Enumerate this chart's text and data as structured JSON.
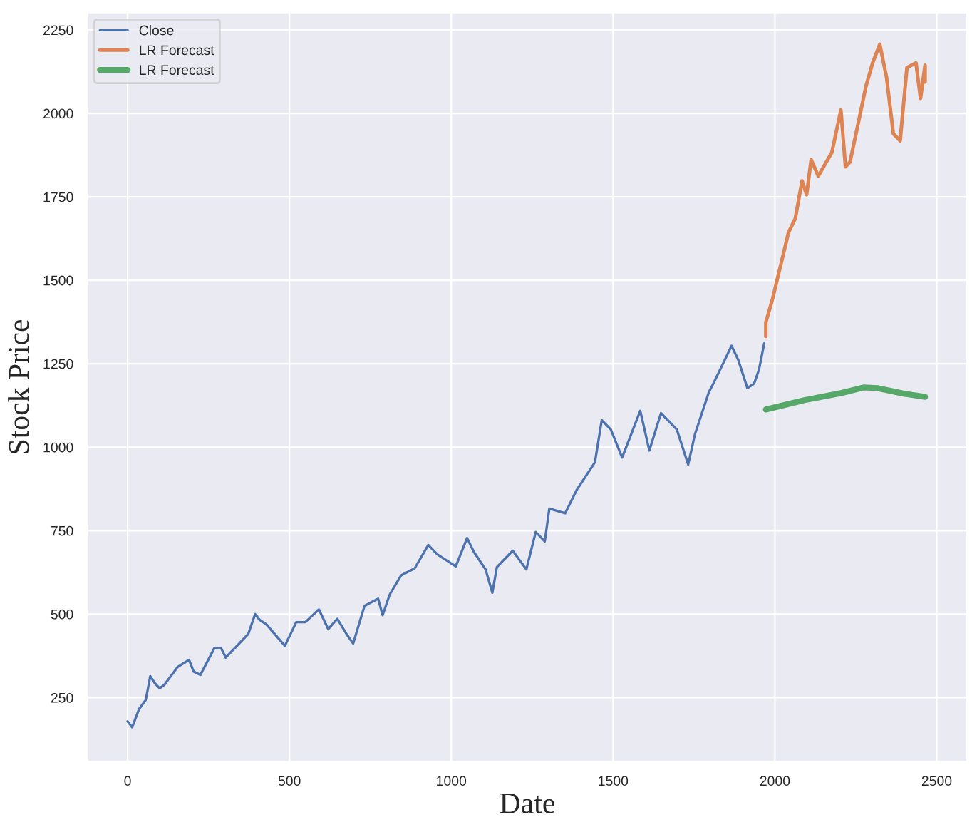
{
  "chart_data": {
    "type": "line",
    "xlabel": "Date",
    "ylabel": "Stock Price",
    "xlim": [
      -124,
      2594
    ],
    "ylim": [
      58,
      2302
    ],
    "xticks": [
      0,
      500,
      1000,
      1500,
      2000,
      2500
    ],
    "yticks": [
      250,
      500,
      750,
      1000,
      1250,
      1500,
      1750,
      2000,
      2250
    ],
    "grid": true,
    "legend": "top left",
    "series": [
      {
        "name": "Close",
        "color": "#4c72b0",
        "x": [
          0,
          14,
          35,
          56,
          70,
          85,
          99,
          113,
          155,
          190,
          204,
          225,
          268,
          289,
          303,
          338,
          373,
          394,
          408,
          429,
          486,
          521,
          549,
          591,
          620,
          648,
          676,
          697,
          732,
          774,
          788,
          810,
          845,
          887,
          929,
          957,
          1014,
          1049,
          1070,
          1106,
          1127,
          1141,
          1190,
          1232,
          1261,
          1289,
          1303,
          1352,
          1387,
          1444,
          1465,
          1493,
          1528,
          1584,
          1612,
          1648,
          1697,
          1732,
          1753,
          1796,
          1810,
          1838,
          1866,
          1887,
          1915,
          1936,
          1951,
          1967
        ],
        "values": [
          179,
          161,
          215,
          243,
          314,
          292,
          278,
          288,
          342,
          363,
          328,
          318,
          398,
          398,
          370,
          405,
          441,
          500,
          483,
          469,
          405,
          476,
          476,
          514,
          455,
          486,
          441,
          412,
          525,
          546,
          497,
          559,
          616,
          637,
          707,
          679,
          643,
          728,
          686,
          634,
          564,
          641,
          690,
          634,
          746,
          718,
          816,
          802,
          871,
          955,
          1081,
          1053,
          969,
          1109,
          990,
          1102,
          1053,
          948,
          1039,
          1165,
          1191,
          1247,
          1304,
          1261,
          1177,
          1191,
          1233,
          1311
        ]
      },
      {
        "name": "LR Forecast",
        "color": "#dd8452",
        "x": [
          1972,
          1972,
          1993,
          2021,
          2042,
          2063,
          2084,
          2098,
          2112,
          2134,
          2176,
          2204,
          2218,
          2232,
          2260,
          2281,
          2302,
          2324,
          2345,
          2366,
          2387,
          2408,
          2436,
          2450,
          2464,
          2464
        ],
        "values": [
          1332,
          1374,
          1445,
          1558,
          1643,
          1685,
          1798,
          1756,
          1861,
          1812,
          1883,
          2010,
          1840,
          1854,
          1982,
          2080,
          2151,
          2207,
          2108,
          1939,
          1918,
          2137,
          2151,
          2045,
          2144,
          2094
        ]
      },
      {
        "name": "LR Forecast",
        "color": "#55a868",
        "x": [
          1972,
          2091,
          2204,
          2274,
          2317,
          2401,
          2464
        ],
        "values": [
          1113,
          1141,
          1162,
          1179,
          1177,
          1160,
          1151
        ]
      }
    ]
  }
}
